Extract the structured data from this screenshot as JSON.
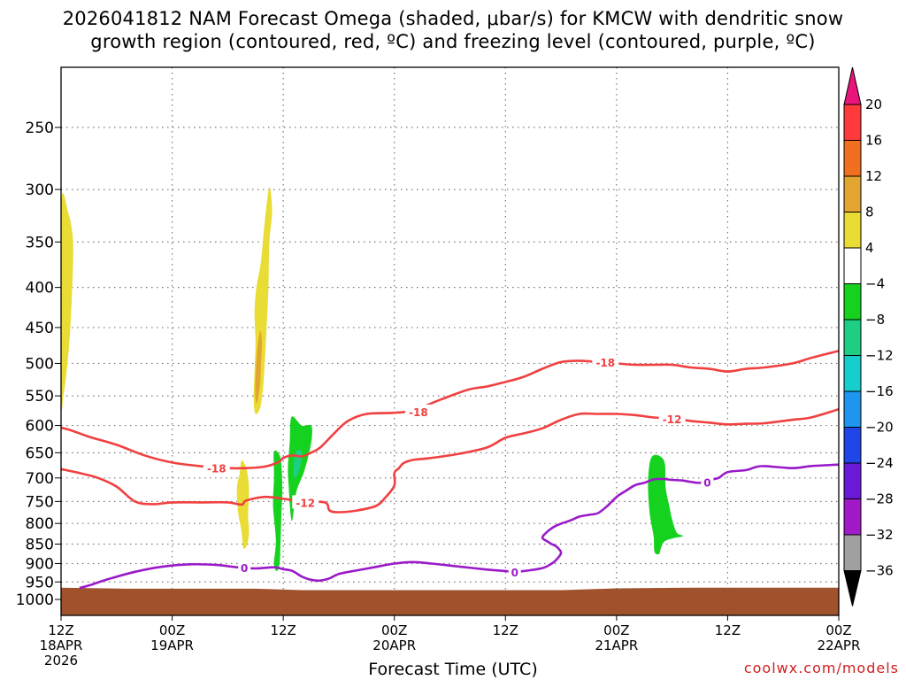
{
  "chart_data": {
    "type": "filled-contour",
    "title_line1": "2026041812 NAM Forecast Omega (shaded, μbar/s) for KMCW with dendritic snow",
    "title_line2": "growth region (contoured, red, ºC) and freezing level (contoured, purple, ºC)",
    "xlabel": "Forecast Time (UTC)",
    "ylabel": "",
    "credit": "coolwx.com/models",
    "x_range_hours": [
      0,
      84
    ],
    "y_range_hpa": [
      200,
      1050
    ],
    "y_ticks": [
      250,
      300,
      350,
      400,
      450,
      500,
      550,
      600,
      650,
      700,
      750,
      800,
      850,
      900,
      950,
      1000
    ],
    "x_ticks": [
      {
        "hour": 0,
        "label1": "12Z",
        "label2": "18APR",
        "label3": "2026"
      },
      {
        "hour": 12,
        "label1": "00Z",
        "label2": "19APR",
        "label3": ""
      },
      {
        "hour": 24,
        "label1": "12Z",
        "label2": "",
        "label3": ""
      },
      {
        "hour": 36,
        "label1": "00Z",
        "label2": "20APR",
        "label3": ""
      },
      {
        "hour": 48,
        "label1": "12Z",
        "label2": "",
        "label3": ""
      },
      {
        "hour": 60,
        "label1": "00Z",
        "label2": "21APR",
        "label3": ""
      },
      {
        "hour": 72,
        "label1": "12Z",
        "label2": "",
        "label3": ""
      },
      {
        "hour": 84,
        "label1": "00Z",
        "label2": "22APR",
        "label3": ""
      }
    ],
    "colorbar": {
      "levels": [
        "20",
        "16",
        "12",
        "8",
        "4",
        "−4",
        "−8",
        "−12",
        "−16",
        "−20",
        "−24",
        "−28",
        "−32",
        "−36"
      ],
      "colors": [
        "#ff3a3a",
        "#f07020",
        "#e2a530",
        "#e8dc35",
        "#ffffff",
        "#14d21e",
        "#1ece83",
        "#16cecb",
        "#1e96f0",
        "#1f46e6",
        "#6a1ad6",
        "#a21ac8",
        "#a0a0a0"
      ],
      "top_arrow_color": "#e8157a",
      "bottom_arrow_color": "#000000"
    },
    "contour_colors": {
      "dendritic": "#f04040",
      "freezing": "#9a1ac8"
    },
    "contours": [
      {
        "name": "dendritic-minus18",
        "label": "-18",
        "color_key": "dendritic",
        "points": [
          [
            0,
            604
          ],
          [
            1,
            608
          ],
          [
            3,
            620
          ],
          [
            6,
            635
          ],
          [
            9,
            655
          ],
          [
            12,
            669
          ],
          [
            15,
            676
          ],
          [
            18,
            680
          ],
          [
            20,
            680
          ],
          [
            22,
            677
          ],
          [
            23.5,
            668
          ],
          [
            24,
            660
          ],
          [
            25,
            655
          ],
          [
            26,
            657
          ],
          [
            27,
            650
          ],
          [
            28,
            640
          ],
          [
            29.5,
            614
          ],
          [
            31,
            592
          ],
          [
            33,
            580
          ],
          [
            36,
            578
          ],
          [
            38,
            574
          ],
          [
            41,
            556
          ],
          [
            44,
            540
          ],
          [
            46,
            535
          ],
          [
            48,
            528
          ],
          [
            50,
            520
          ],
          [
            52,
            508
          ],
          [
            54,
            498
          ],
          [
            56,
            496
          ],
          [
            58,
            498
          ],
          [
            60,
            500
          ],
          [
            62,
            502
          ],
          [
            64,
            502
          ],
          [
            66,
            502
          ],
          [
            68,
            506
          ],
          [
            70,
            508
          ],
          [
            72,
            512
          ],
          [
            74,
            508
          ],
          [
            76,
            506
          ],
          [
            79,
            500
          ],
          [
            81,
            492
          ],
          [
            84,
            482
          ]
        ],
        "label_at": [
          [
            16.8,
            680
          ],
          [
            38.6,
            576
          ],
          [
            58.8,
            498
          ]
        ]
      },
      {
        "name": "dendritic-minus12",
        "label": "-12",
        "color_key": "dendritic",
        "points": [
          [
            0,
            682
          ],
          [
            2,
            690
          ],
          [
            4,
            700
          ],
          [
            6,
            718
          ],
          [
            8,
            750
          ],
          [
            10,
            756
          ],
          [
            12,
            752
          ],
          [
            15,
            752
          ],
          [
            18,
            752
          ],
          [
            19.5,
            757
          ],
          [
            20,
            748
          ],
          [
            22,
            740
          ],
          [
            24,
            744
          ],
          [
            26,
            750
          ],
          [
            28.5,
            752
          ],
          [
            29,
            770
          ],
          [
            30,
            774
          ],
          [
            32,
            770
          ],
          [
            34,
            760
          ],
          [
            35,
            742
          ],
          [
            36,
            716
          ],
          [
            36,
            690
          ],
          [
            36.5,
            680
          ],
          [
            37,
            670
          ],
          [
            38,
            664
          ],
          [
            40,
            660
          ],
          [
            43,
            652
          ],
          [
            46,
            640
          ],
          [
            48,
            622
          ],
          [
            50,
            614
          ],
          [
            52,
            605
          ],
          [
            54,
            590
          ],
          [
            56,
            580
          ],
          [
            58,
            580
          ],
          [
            60,
            580
          ],
          [
            62,
            582
          ],
          [
            64,
            586
          ],
          [
            66,
            588
          ],
          [
            68,
            592
          ],
          [
            70,
            595
          ],
          [
            72,
            598
          ],
          [
            74,
            597
          ],
          [
            76,
            596
          ],
          [
            79,
            590
          ],
          [
            81,
            586
          ],
          [
            84,
            572
          ]
        ],
        "label_at": [
          [
            26.4,
            752
          ],
          [
            66,
            588
          ]
        ]
      },
      {
        "name": "freezing-0",
        "label": "0",
        "color_key": "freezing",
        "points": [
          [
            2,
            967
          ],
          [
            3,
            960
          ],
          [
            5,
            943
          ],
          [
            8,
            922
          ],
          [
            11,
            908
          ],
          [
            14,
            902
          ],
          [
            17,
            904
          ],
          [
            19,
            910
          ],
          [
            21,
            913
          ],
          [
            23,
            910
          ],
          [
            24,
            915
          ],
          [
            25,
            920
          ],
          [
            26,
            935
          ],
          [
            27,
            944
          ],
          [
            28,
            946
          ],
          [
            29,
            940
          ],
          [
            30,
            928
          ],
          [
            32,
            918
          ],
          [
            34,
            909
          ],
          [
            36,
            900
          ],
          [
            38,
            896
          ],
          [
            40,
            900
          ],
          [
            43,
            908
          ],
          [
            46,
            916
          ],
          [
            48,
            920
          ],
          [
            49,
            922
          ],
          [
            50,
            920
          ],
          [
            52,
            912
          ],
          [
            53,
            900
          ],
          [
            53.5,
            890
          ],
          [
            54,
            872
          ],
          [
            53.5,
            856
          ],
          [
            53,
            850
          ],
          [
            52.5,
            843
          ],
          [
            52,
            834
          ],
          [
            52.5,
            820
          ],
          [
            53.5,
            805
          ],
          [
            55,
            793
          ],
          [
            56,
            784
          ],
          [
            57,
            780
          ],
          [
            58,
            776
          ],
          [
            59,
            760
          ],
          [
            60,
            740
          ],
          [
            61,
            727
          ],
          [
            62,
            715
          ],
          [
            63,
            710
          ],
          [
            64,
            703
          ],
          [
            65,
            702
          ],
          [
            66,
            704
          ],
          [
            67,
            705
          ],
          [
            68,
            708
          ],
          [
            69,
            710
          ],
          [
            70,
            704
          ],
          [
            71,
            700
          ],
          [
            72,
            688
          ],
          [
            74,
            684
          ],
          [
            75,
            678
          ],
          [
            76,
            676
          ],
          [
            79,
            680
          ],
          [
            81,
            676
          ],
          [
            84,
            673
          ]
        ],
        "label_at": [
          [
            19.8,
            911
          ],
          [
            49,
            922
          ],
          [
            69.8,
            709
          ]
        ]
      }
    ],
    "shaded_regions": [
      {
        "name": "omega-pos-4-8-left",
        "level": "4 to 8",
        "color_index": 3,
        "points": [
          [
            0,
            315
          ],
          [
            0.8,
            322
          ],
          [
            1.3,
            350
          ],
          [
            1.2,
            400
          ],
          [
            1,
            450
          ],
          [
            0.7,
            500
          ],
          [
            0.3,
            545
          ],
          [
            0,
            550
          ]
        ]
      },
      {
        "name": "omega-pos-4-8-tall",
        "level": "4 to 8",
        "color_index": 3,
        "points": [
          [
            22.5,
            298
          ],
          [
            22.8,
            320
          ],
          [
            22.5,
            350
          ],
          [
            22.4,
            400
          ],
          [
            22.2,
            450
          ],
          [
            22,
            500
          ],
          [
            21.8,
            540
          ],
          [
            21.5,
            570
          ],
          [
            21,
            580
          ],
          [
            20.8,
            555
          ],
          [
            20.9,
            510
          ],
          [
            21,
            470
          ],
          [
            20.9,
            430
          ],
          [
            21.1,
            400
          ],
          [
            21.6,
            370
          ],
          [
            22,
            330
          ]
        ]
      },
      {
        "name": "omega-pos-8-12-core",
        "level": "8 to 12",
        "color_index": 2,
        "points": [
          [
            21.5,
            455
          ],
          [
            21.7,
            470
          ],
          [
            21.6,
            500
          ],
          [
            21.5,
            530
          ],
          [
            21.2,
            560
          ],
          [
            21,
            555
          ],
          [
            21,
            520
          ],
          [
            21.2,
            480
          ]
        ]
      },
      {
        "name": "omega-pos-4-8-lower",
        "level": "4 to 8",
        "color_index": 3,
        "points": [
          [
            19.5,
            665
          ],
          [
            20,
            680
          ],
          [
            20.3,
            720
          ],
          [
            20.2,
            780
          ],
          [
            20.3,
            820
          ],
          [
            20.1,
            850
          ],
          [
            19.7,
            860
          ],
          [
            19.5,
            820
          ],
          [
            19.1,
            770
          ],
          [
            19,
            720
          ],
          [
            19.3,
            690
          ]
        ]
      },
      {
        "name": "omega-neg-4-8-a",
        "level": "-4 to -8",
        "color_index": 5,
        "points": [
          [
            23,
            648
          ],
          [
            23.7,
            660
          ],
          [
            23.9,
            720
          ],
          [
            23.8,
            780
          ],
          [
            23.7,
            850
          ],
          [
            23.6,
            900
          ],
          [
            23.3,
            920
          ],
          [
            23,
            900
          ],
          [
            23.2,
            840
          ],
          [
            22.9,
            760
          ],
          [
            23,
            700
          ]
        ]
      },
      {
        "name": "omega-neg-4-8-b",
        "level": "-4 to -8",
        "color_index": 5,
        "points": [
          [
            24.9,
            585
          ],
          [
            26,
            600
          ],
          [
            27,
            600
          ],
          [
            27.1,
            620
          ],
          [
            26.8,
            650
          ],
          [
            26.2,
            690
          ],
          [
            25.4,
            730
          ],
          [
            25,
            790
          ],
          [
            24.8,
            780
          ],
          [
            24.6,
            720
          ],
          [
            24.5,
            680
          ],
          [
            24.7,
            630
          ]
        ]
      },
      {
        "name": "omega-neg-4-8-right",
        "level": "-4 to -8",
        "color_index": 5,
        "points": [
          [
            63.8,
            658
          ],
          [
            64.5,
            655
          ],
          [
            65.2,
            670
          ],
          [
            65.3,
            720
          ],
          [
            65.7,
            760
          ],
          [
            66,
            790
          ],
          [
            66.5,
            822
          ],
          [
            67.2,
            830
          ],
          [
            66.2,
            835
          ],
          [
            65.2,
            843
          ],
          [
            64.8,
            860
          ],
          [
            64.6,
            875
          ],
          [
            64.1,
            870
          ],
          [
            64,
            830
          ],
          [
            63.6,
            780
          ],
          [
            63.4,
            720
          ],
          [
            63.5,
            680
          ]
        ]
      },
      {
        "name": "omega-neg-8-12",
        "level": "-8 to -12",
        "color_index": 6,
        "points": [
          [
            25.5,
            645
          ],
          [
            26,
            650
          ],
          [
            25.8,
            680
          ],
          [
            25.3,
            700
          ],
          [
            25.1,
            690
          ],
          [
            25.2,
            660
          ]
        ]
      }
    ],
    "ground": {
      "color": "#a0522d",
      "top_points": [
        [
          0,
          966
        ],
        [
          7,
          969
        ],
        [
          14,
          969
        ],
        [
          21,
          969
        ],
        [
          26,
          973
        ],
        [
          36,
          973
        ],
        [
          46,
          973
        ],
        [
          54,
          973
        ],
        [
          60,
          968
        ],
        [
          68,
          966
        ],
        [
          76,
          966
        ],
        [
          84,
          966
        ]
      ]
    }
  }
}
